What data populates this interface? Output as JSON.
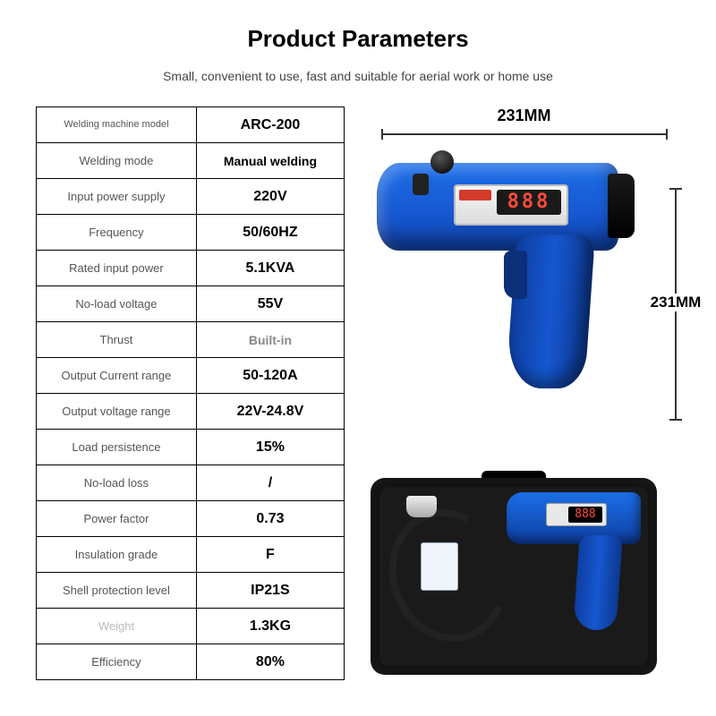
{
  "header": {
    "title": "Product Parameters",
    "subtitle": "Small, convenient to use, fast and suitable for aerial work or home use"
  },
  "dimensions": {
    "width_label": "231MM",
    "height_label": "231MM"
  },
  "display": {
    "main_digits": "888",
    "case_digits": "888"
  },
  "colors": {
    "tool_blue": "#1657d0",
    "tool_blue_light": "#1d6fe8",
    "tool_blue_dark": "#0d3ea0",
    "digit_red": "#ff4a3a",
    "case_black": "#111111",
    "panel_gray": "#e8e8e8",
    "border": "#000000",
    "label_gray": "#555555",
    "lightgray": "#bbbbbb",
    "value_gray": "#888888"
  },
  "spec_rows": [
    {
      "label": "Welding\nmachine model",
      "value": "ARC-200",
      "label_class": "small"
    },
    {
      "label": "Welding mode",
      "value": "Manual welding",
      "value_class": "smaller"
    },
    {
      "label": "Input power supply",
      "value": "220V"
    },
    {
      "label": "Frequency",
      "value": "50/60HZ"
    },
    {
      "label": "Rated input power",
      "value": "5.1KVA"
    },
    {
      "label": "No-load voltage",
      "value": "55V"
    },
    {
      "label": "Thrust",
      "value": "Built-in",
      "value_class": "gray smaller"
    },
    {
      "label": "Output Current range",
      "value": "50-120A"
    },
    {
      "label": "Output voltage range",
      "value": "22V-24.8V"
    },
    {
      "label": "Load persistence",
      "value": "15%"
    },
    {
      "label": "No-load loss",
      "value": "/"
    },
    {
      "label": "Power factor",
      "value": "0.73"
    },
    {
      "label": "Insulation grade",
      "value": "F"
    },
    {
      "label": "Shell protection level",
      "value": "IP21S"
    },
    {
      "label": "Weight",
      "value": "1.3KG",
      "label_class": "lightgray"
    },
    {
      "label": "Efficiency",
      "value": "80%"
    }
  ]
}
